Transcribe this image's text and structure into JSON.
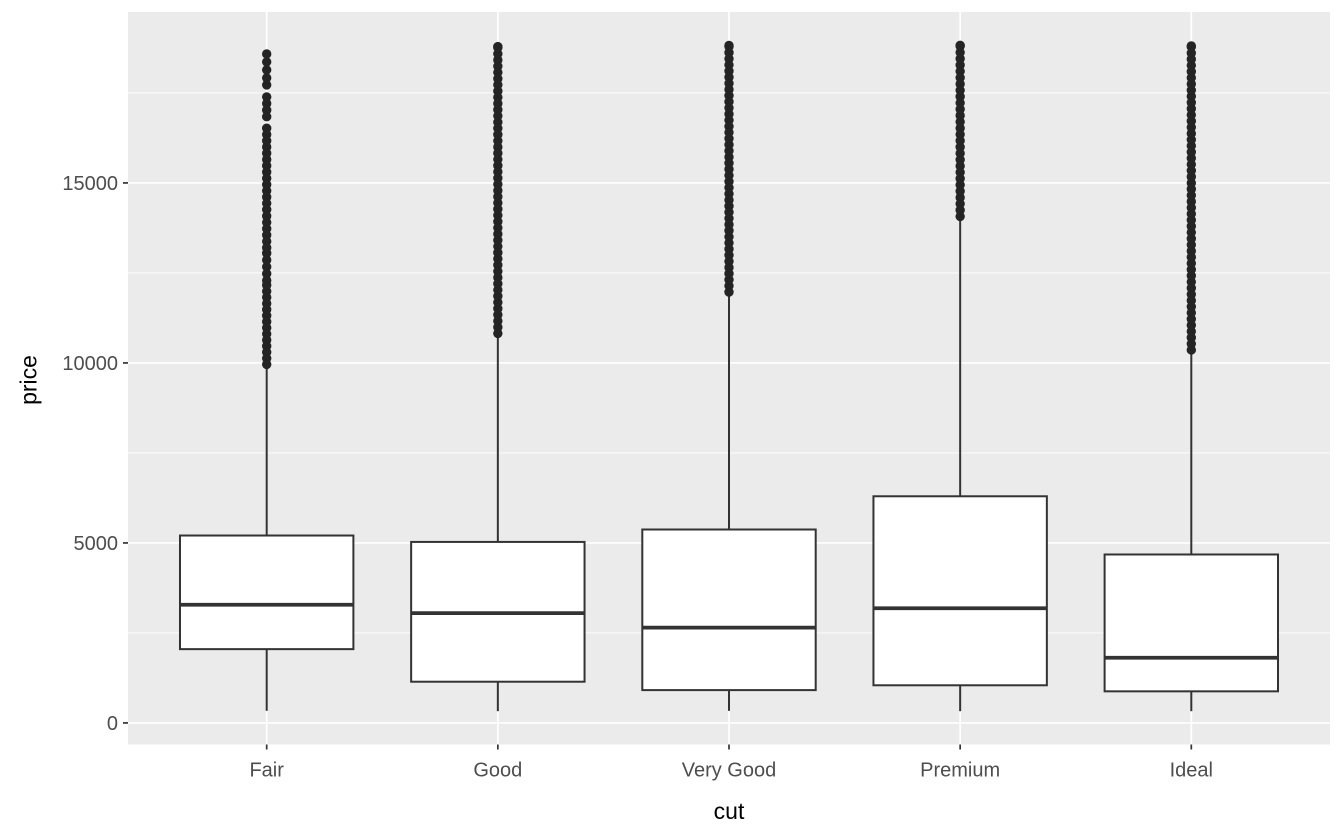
{
  "chart_data": {
    "type": "boxplot",
    "title": "",
    "xlabel": "cut",
    "ylabel": "price",
    "categories": [
      "Fair",
      "Good",
      "Very Good",
      "Premium",
      "Ideal"
    ],
    "legend": "none",
    "grid": "on",
    "y_axis": {
      "ticks": [
        0,
        5000,
        10000,
        15000
      ],
      "tick_labels": [
        "0",
        "5000",
        "10000",
        "15000"
      ],
      "minor_ticks": [
        2500,
        7500,
        12500,
        17500
      ],
      "ylim": [
        -599,
        19748
      ]
    },
    "x_axis": {
      "domain": [
        0.4,
        5.6
      ],
      "positions": [
        1,
        2,
        3,
        4,
        5
      ]
    },
    "series": [
      {
        "name": "Fair",
        "min": 337,
        "q1": 2050,
        "median": 3282,
        "q3": 5206,
        "whisker_high": 9938,
        "outlier_segments": [
          [
            9960,
            12160
          ],
          [
            12290,
            13050
          ],
          [
            13200,
            14080
          ],
          [
            14260,
            16520
          ],
          [
            16840,
            17390
          ]
        ],
        "outlier_points": [
          17722,
          17917,
          18139,
          18361,
          18583
        ]
      },
      {
        "name": "Good",
        "min": 327,
        "q1": 1145,
        "median": 3050,
        "q3": 5028,
        "whisker_high": 10800,
        "outlier_segments": [
          [
            10820,
            18760
          ]
        ],
        "outlier_points": [
          18788
        ]
      },
      {
        "name": "Very Good",
        "min": 336,
        "q1": 912,
        "median": 2648,
        "q3": 5373,
        "whisker_high": 11950,
        "outlier_segments": [
          [
            11970,
            18790
          ]
        ],
        "outlier_points": [
          18818
        ]
      },
      {
        "name": "Premium",
        "min": 326,
        "q1": 1046,
        "median": 3185,
        "q3": 6296,
        "whisker_high": 14050,
        "outlier_segments": [
          [
            14070,
            18800
          ]
        ],
        "outlier_points": [
          18823
        ]
      },
      {
        "name": "Ideal",
        "min": 326,
        "q1": 878,
        "median": 1810,
        "q3": 4679,
        "whisker_high": 10340,
        "outlier_segments": [
          [
            10360,
            18780
          ]
        ],
        "outlier_points": [
          18806
        ]
      }
    ],
    "style": {
      "panel_bg": "#EBEBEB",
      "grid_color": "#FFFFFF",
      "box_fill": "#FFFFFF",
      "box_stroke": "#333333",
      "outlier_color": "#242424",
      "tick_mark_color": "#333333",
      "tick_label_color": "#4D4D4D",
      "title_color": "#000000"
    }
  }
}
